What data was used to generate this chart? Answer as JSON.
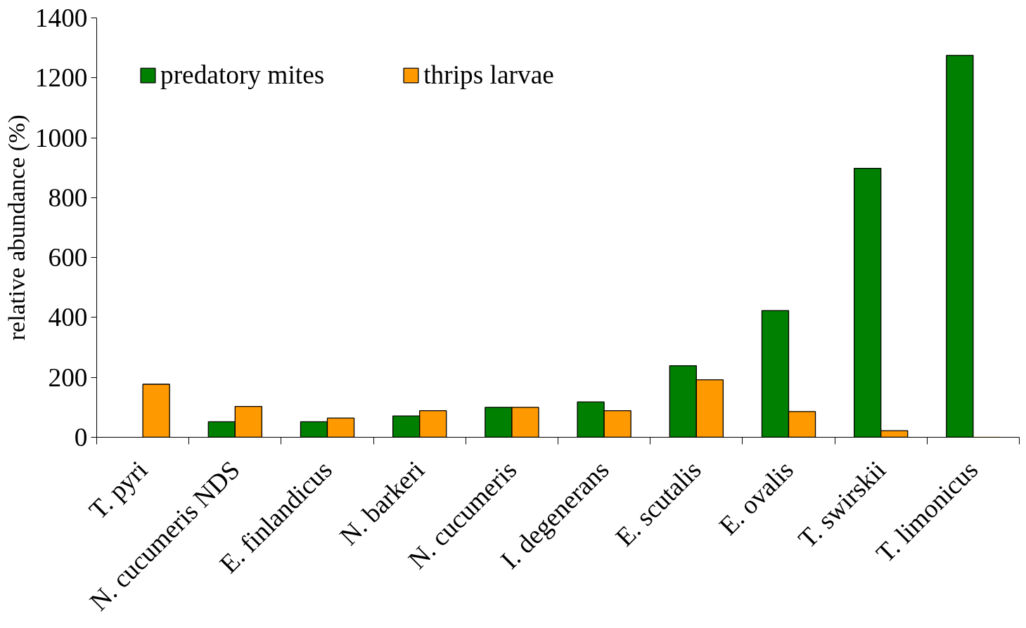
{
  "chart_data": {
    "type": "bar",
    "ylabel": "relative abundance (%)",
    "categories": [
      "T. pyri",
      "N. cucumeris NDS",
      "E. finlandicus",
      "N. barkeri",
      "N. cucumeris",
      "I. degenerans",
      "E. scutalis",
      "E. ovalis",
      "T. swirskii",
      "T. limonicus"
    ],
    "series": [
      {
        "name": "predatory mites",
        "color": "#008000",
        "values": [
          null,
          52,
          52,
          71,
          100,
          118,
          239,
          423,
          898,
          1275
        ]
      },
      {
        "name": "thrips larvae",
        "color": "#ff9900",
        "values": [
          177,
          103,
          64,
          89,
          100,
          89,
          192,
          86,
          22,
          0
        ]
      }
    ],
    "ylim": [
      0,
      1400
    ],
    "yticks": [
      0,
      200,
      400,
      600,
      800,
      1000,
      1200,
      1400
    ],
    "grid": false,
    "legend": "top left"
  }
}
